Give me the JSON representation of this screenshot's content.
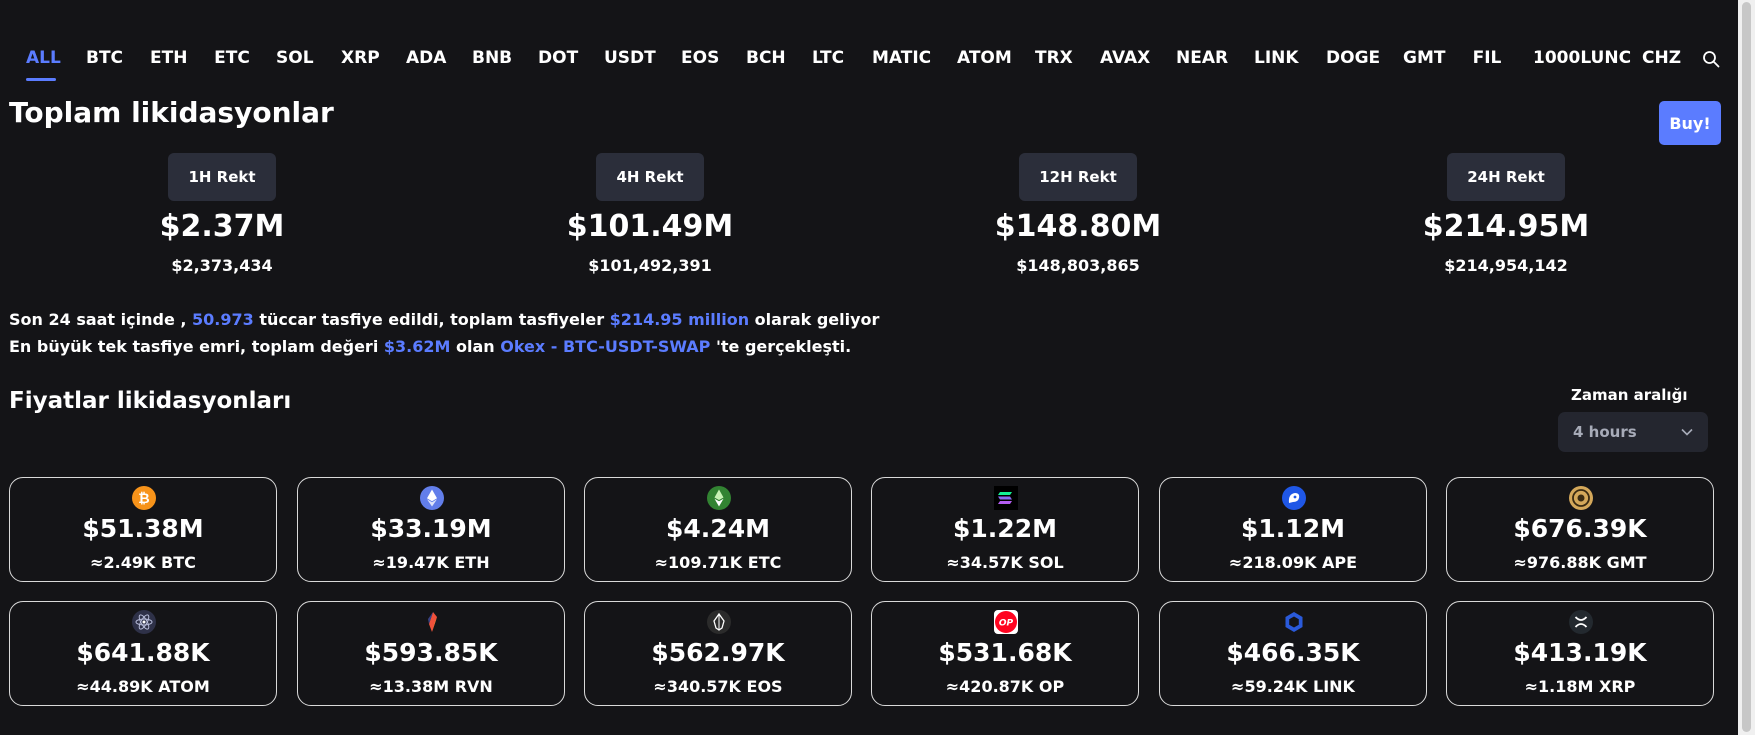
{
  "tabs": [
    "ALL",
    "BTC",
    "ETH",
    "ETC",
    "SOL",
    "XRP",
    "ADA",
    "BNB",
    "DOT",
    "USDT",
    "EOS",
    "BCH",
    "LTC",
    "MATIC",
    "ATOM",
    "TRX",
    "AVAX",
    "NEAR",
    "LINK",
    "DOGE",
    "GMT",
    "FIL",
    "1000LUNC",
    "CHZ"
  ],
  "active_tab": "ALL",
  "header": {
    "title": "Toplam likidasyonlar",
    "buy_label": "Buy!"
  },
  "rekt": [
    {
      "label": "1H Rekt",
      "value": "$2.37M",
      "exact": "$2,373,434"
    },
    {
      "label": "4H Rekt",
      "value": "$101.49M",
      "exact": "$101,492,391"
    },
    {
      "label": "12H Rekt",
      "value": "$148.80M",
      "exact": "$148,803,865"
    },
    {
      "label": "24H Rekt",
      "value": "$214.95M",
      "exact": "$214,954,142"
    }
  ],
  "summary": {
    "line1_a": "Son 24 saat içinde , ",
    "line1_traders": "50.973",
    "line1_b": " tüccar tasfiye edildi, toplam tasfiyeler ",
    "line1_total": "$214.95 million",
    "line1_c": " olarak geliyor",
    "line2_a": "En büyük tek tasfiye emri, toplam değeri ",
    "line2_value": "$3.62M",
    "line2_b": " olan ",
    "line2_exchange": "Okex - BTC-USDT-SWAP",
    "line2_c": " 'te gerçekleşti."
  },
  "prices": {
    "title": "Fiyatlar likidasyonları",
    "range_label": "Zaman aralığı",
    "range_value": "4 hours"
  },
  "cards": [
    {
      "icon": "btc-icon",
      "color": "#f7931a",
      "value": "$51.38M",
      "amount": "≈2.49K BTC"
    },
    {
      "icon": "eth-icon",
      "color": "#627eea",
      "value": "$33.19M",
      "amount": "≈19.47K ETH"
    },
    {
      "icon": "etc-icon",
      "color": "#328332",
      "value": "$4.24M",
      "amount": "≈109.71K ETC"
    },
    {
      "icon": "sol-icon",
      "color": "#000000",
      "value": "$1.22M",
      "amount": "≈34.57K SOL"
    },
    {
      "icon": "ape-icon",
      "color": "#1f57e6",
      "value": "$1.12M",
      "amount": "≈218.09K APE"
    },
    {
      "icon": "gmt-icon",
      "color": "#d4a85a",
      "value": "$676.39K",
      "amount": "≈976.88K GMT"
    },
    {
      "icon": "atom-icon",
      "color": "#2e3148",
      "value": "$641.88K",
      "amount": "≈44.89K ATOM"
    },
    {
      "icon": "rvn-icon",
      "color": "#f0513b",
      "value": "$593.85K",
      "amount": "≈13.38M RVN"
    },
    {
      "icon": "eos-icon",
      "color": "#2b2b2b",
      "value": "$562.97K",
      "amount": "≈340.57K EOS"
    },
    {
      "icon": "op-icon",
      "color": "#ff0420",
      "value": "$531.68K",
      "amount": "≈420.87K OP"
    },
    {
      "icon": "link-icon",
      "color": "#2a5ada",
      "value": "$466.35K",
      "amount": "≈59.24K LINK"
    },
    {
      "icon": "xrp-icon",
      "color": "#23292f",
      "value": "$413.19K",
      "amount": "≈1.18M XRP"
    }
  ]
}
